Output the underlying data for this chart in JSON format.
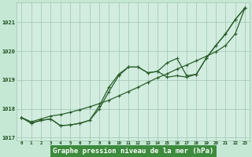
{
  "title": "Graphe pression niveau de la mer (hPa)",
  "hours": [
    0,
    1,
    2,
    3,
    4,
    5,
    6,
    7,
    8,
    9,
    10,
    11,
    12,
    13,
    14,
    15,
    16,
    17,
    18,
    19,
    20,
    21,
    22,
    23
  ],
  "line_straight": [
    1017.7,
    1017.55,
    1017.65,
    1017.75,
    1017.8,
    1017.88,
    1017.97,
    1018.07,
    1018.18,
    1018.3,
    1018.45,
    1018.6,
    1018.75,
    1018.92,
    1019.08,
    1019.22,
    1019.38,
    1019.52,
    1019.67,
    1019.82,
    1019.98,
    1020.2,
    1020.6,
    1021.5
  ],
  "line_mid": [
    1017.7,
    1017.5,
    1017.6,
    1017.65,
    1017.42,
    1017.44,
    1017.5,
    1017.6,
    1018.1,
    1018.75,
    1019.2,
    1019.45,
    1019.45,
    1019.25,
    1019.3,
    1019.1,
    1019.15,
    1019.1,
    1019.2,
    1019.75,
    1020.2,
    1020.6,
    1021.1,
    1021.5
  ],
  "line_low": [
    1017.7,
    1017.5,
    1017.6,
    1017.65,
    1017.42,
    1017.44,
    1017.5,
    1017.6,
    1018.0,
    1018.6,
    1019.15,
    1019.45,
    1019.45,
    1019.25,
    1019.3,
    1019.6,
    1019.75,
    1019.15,
    1019.2,
    1019.75,
    1020.2,
    1020.6,
    1021.1,
    1021.5
  ],
  "ylim": [
    1016.9,
    1021.7
  ],
  "yticks": [
    1017,
    1018,
    1019,
    1020,
    1021
  ],
  "bg_color": "#c5e8d5",
  "plot_bg_color": "#d2ede0",
  "grid_color": "#9dc4ae",
  "line_color": "#2a5e2a",
  "title_color": "#1a4a1a",
  "title_bg": "#3d8b3d",
  "title_fontsize": 6.5,
  "marker_size": 3.0,
  "lw": 0.9
}
